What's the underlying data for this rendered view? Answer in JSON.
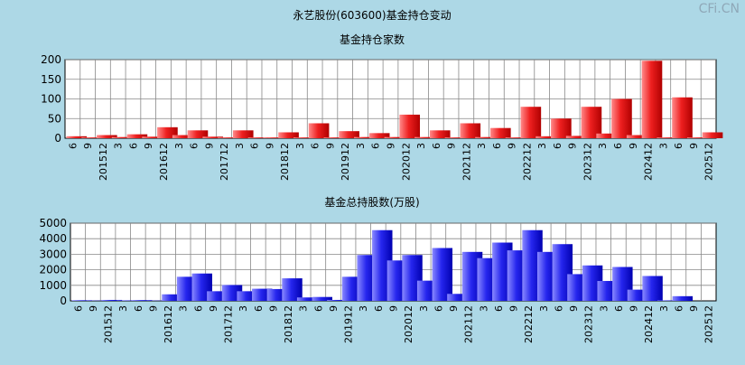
{
  "page": {
    "main_title": "永艺股份(603600)基金持仓变动",
    "watermark": "CFi.CN"
  },
  "chart_data": [
    {
      "type": "bar",
      "title": "基金持仓家数",
      "ylim": [
        0,
        200
      ],
      "yticks": [
        0,
        50,
        100,
        150,
        200
      ],
      "grid": true,
      "color": "#ff2b2b",
      "categories": [
        "6",
        "9",
        "201512",
        "3",
        "6",
        "9",
        "201612",
        "3",
        "6",
        "9",
        "201712",
        "3",
        "6",
        "9",
        "201812",
        "3",
        "6",
        "9",
        "201912",
        "3",
        "6",
        "9",
        "202012",
        "3",
        "6",
        "9",
        "202112",
        "3",
        "6",
        "9",
        "202212",
        "3",
        "6",
        "9",
        "202312",
        "3",
        "6",
        "9",
        "202412",
        "3",
        "6",
        "9",
        "202512"
      ],
      "values": [
        5,
        2,
        8,
        3,
        10,
        4,
        28,
        8,
        20,
        4,
        2,
        20,
        2,
        2,
        15,
        2,
        38,
        2,
        18,
        3,
        13,
        3,
        60,
        3,
        20,
        2,
        38,
        3,
        26,
        2,
        80,
        5,
        50,
        6,
        80,
        12,
        100,
        8,
        197,
        2,
        104,
        2,
        15
      ]
    },
    {
      "type": "bar",
      "title": "基金总持股数(万股)",
      "ylim": [
        0,
        5000
      ],
      "yticks": [
        0,
        1000,
        2000,
        3000,
        4000,
        5000
      ],
      "grid": true,
      "color": "#3030ff",
      "categories": [
        "6",
        "9",
        "201512",
        "3",
        "6",
        "9",
        "201612",
        "3",
        "6",
        "9",
        "201712",
        "3",
        "6",
        "9",
        "201812",
        "3",
        "6",
        "9",
        "201912",
        "3",
        "6",
        "9",
        "202012",
        "3",
        "6",
        "9",
        "202112",
        "3",
        "6",
        "9",
        "202212",
        "3",
        "6",
        "9",
        "202312",
        "3",
        "6",
        "9",
        "202412",
        "3",
        "6",
        "9",
        "202512"
      ],
      "values": [
        40,
        20,
        60,
        30,
        50,
        20,
        420,
        1550,
        1760,
        620,
        1020,
        620,
        780,
        760,
        1450,
        220,
        250,
        60,
        1550,
        2950,
        4550,
        2600,
        2950,
        1300,
        3400,
        450,
        3150,
        2750,
        3750,
        3250,
        4550,
        3150,
        3650,
        1720,
        2280,
        1280,
        2180,
        720,
        1600,
        30,
        300,
        0,
        0
      ]
    }
  ]
}
